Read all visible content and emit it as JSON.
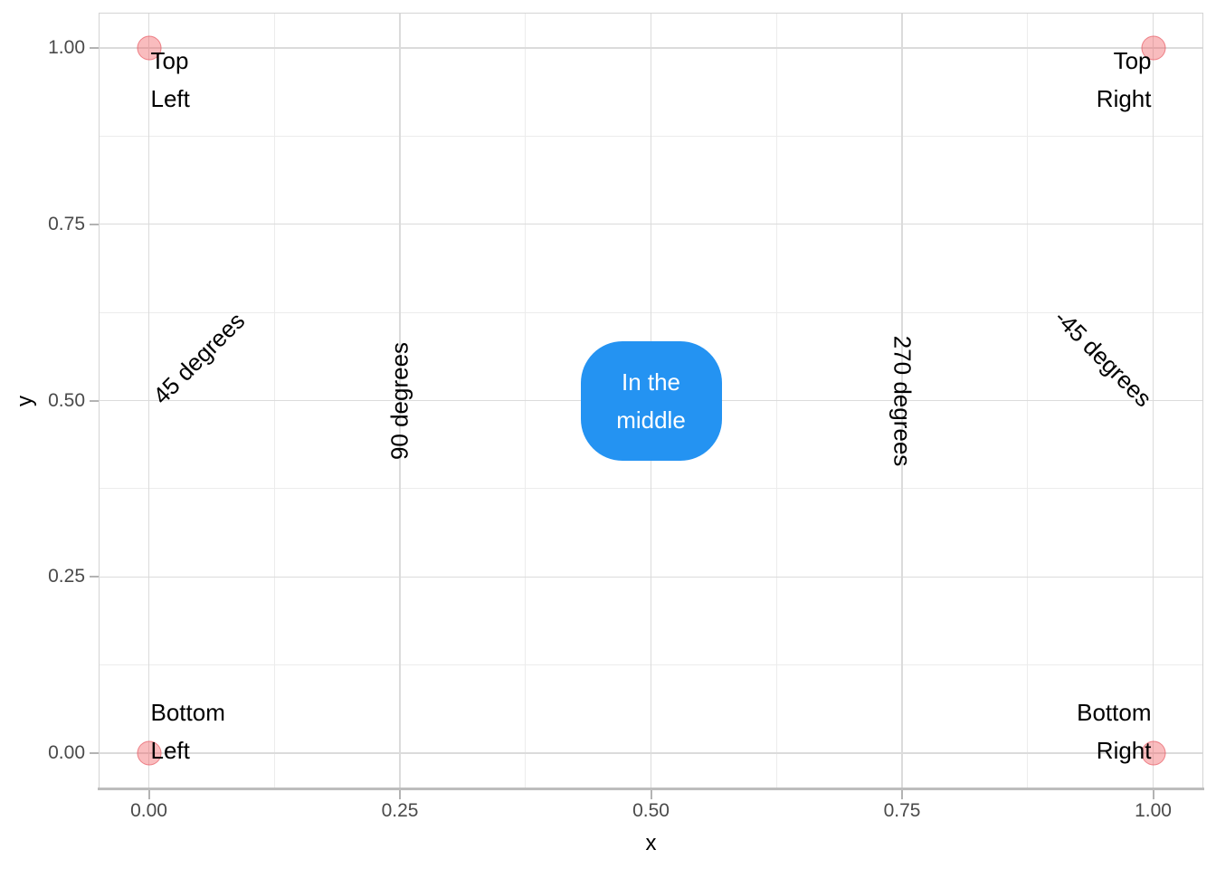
{
  "chart_data": {
    "type": "scatter",
    "title": "",
    "xlabel": "x",
    "ylabel": "y",
    "xlim": [
      0,
      1
    ],
    "ylim": [
      0,
      1
    ],
    "grid": true,
    "legend": "none",
    "x_ticks": [
      0,
      0.25,
      0.5,
      0.75,
      1
    ],
    "x_tick_labels": [
      "0.00",
      "0.25",
      "0.50",
      "0.75",
      "1.00"
    ],
    "y_ticks": [
      0,
      0.25,
      0.5,
      0.75,
      1
    ],
    "y_tick_labels": [
      "0.00",
      "0.25",
      "0.50",
      "0.75",
      "1.00"
    ],
    "x_minor_ticks": [
      0.125,
      0.375,
      0.625,
      0.875
    ],
    "y_minor_ticks": [
      0.125,
      0.375,
      0.625,
      0.875
    ],
    "points": [
      {
        "x": 0,
        "y": 1
      },
      {
        "x": 1,
        "y": 1
      },
      {
        "x": 0,
        "y": 0
      },
      {
        "x": 1,
        "y": 0
      }
    ],
    "point_labels": [
      {
        "lines": [
          "Top",
          "Left"
        ],
        "x": 0,
        "y": 1,
        "halign": "left",
        "valign": "below"
      },
      {
        "lines": [
          "Top",
          "Right"
        ],
        "x": 1,
        "y": 1,
        "halign": "right",
        "valign": "below"
      },
      {
        "lines": [
          "Bottom",
          "Left"
        ],
        "x": 0,
        "y": 0,
        "halign": "left",
        "valign": "above"
      },
      {
        "lines": [
          "Bottom",
          "Right"
        ],
        "x": 1,
        "y": 0,
        "halign": "right",
        "valign": "above"
      }
    ],
    "rotated_annotations": [
      {
        "label": "45 degrees",
        "x": 0.05,
        "y": 0.56,
        "angle": 45
      },
      {
        "label": "90 degrees",
        "x": 0.25,
        "y": 0.5,
        "angle": 90
      },
      {
        "label": "270 degrees",
        "x": 0.75,
        "y": 0.5,
        "angle": 270
      },
      {
        "label": "-45 degrees",
        "x": 0.95,
        "y": 0.56,
        "angle": -45
      }
    ],
    "middle_label": {
      "lines": [
        "In the",
        "middle"
      ],
      "x": 0.5,
      "y": 0.5
    }
  },
  "style": {
    "background": "#FFFFFF",
    "panel_border": "#D4D4D4",
    "grid_major": "#DBDBDB",
    "grid_minor": "#ECECEC",
    "axis_line": "#BDBDBD",
    "tick_color": "#B3B3B3",
    "tick_label_color": "#4A4A4A",
    "axis_title_color": "#000000",
    "annotation_color": "#000000",
    "point_fill": "rgba(240,95,100,0.42)",
    "point_stroke": "rgba(228,75,85,0.55)",
    "middle_label_fill": "#2493F2",
    "middle_label_text": "#FFFFFF"
  }
}
